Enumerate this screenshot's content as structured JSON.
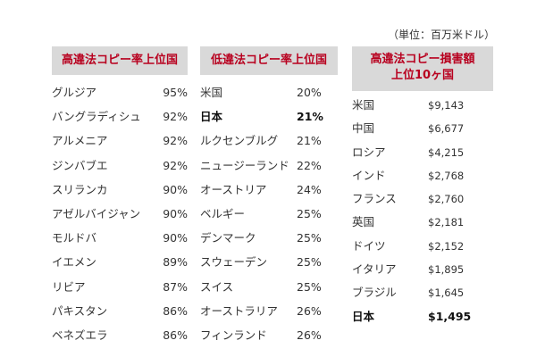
{
  "unit_note": "（単位：百万米ドル）",
  "high_rate": {
    "title": "高違法コピー率上位国",
    "rows": [
      {
        "name": "グルジア",
        "value": "95%"
      },
      {
        "name": "バングラディシュ",
        "value": "92%"
      },
      {
        "name": "アルメニア",
        "value": "92%"
      },
      {
        "name": "ジンバブエ",
        "value": "92%"
      },
      {
        "name": "スリランカ",
        "value": "90%"
      },
      {
        "name": "アゼルバイジャン",
        "value": "90%"
      },
      {
        "name": "モルドバ",
        "value": "90%"
      },
      {
        "name": "イエメン",
        "value": "89%"
      },
      {
        "name": "リビア",
        "value": "87%"
      },
      {
        "name": "パキスタン",
        "value": "86%"
      },
      {
        "name": "ベネズエラ",
        "value": "86%"
      }
    ]
  },
  "low_rate": {
    "title": "低違法コピー率上位国",
    "rows": [
      {
        "name": "米国",
        "value": "20%"
      },
      {
        "name": "日本",
        "value": "21%",
        "bold": true
      },
      {
        "name": "ルクセンブルグ",
        "value": "21%"
      },
      {
        "name": "ニュージーランド",
        "value": "22%"
      },
      {
        "name": "オーストリア",
        "value": "24%"
      },
      {
        "name": "ベルギー",
        "value": "25%"
      },
      {
        "name": "デンマーク",
        "value": "25%"
      },
      {
        "name": "スウェーデン",
        "value": "25%"
      },
      {
        "name": "スイス",
        "value": "25%"
      },
      {
        "name": "オーストラリア",
        "value": "26%"
      },
      {
        "name": "フィンランド",
        "value": "26%"
      }
    ]
  },
  "loss": {
    "title_line1": "高違法コピー損害額",
    "title_line2": "上位10ヶ国",
    "rows": [
      {
        "name": "米国",
        "value": "$9,143"
      },
      {
        "name": "中国",
        "value": "$6,677"
      },
      {
        "name": "ロシア",
        "value": "$4,215"
      },
      {
        "name": "インド",
        "value": "$2,768"
      },
      {
        "name": "フランス",
        "value": "$2,760"
      },
      {
        "name": "英国",
        "value": "$2,181"
      },
      {
        "name": "ドイツ",
        "value": "$2,152"
      },
      {
        "name": "イタリア",
        "value": "$1,895"
      },
      {
        "name": "ブラジル",
        "value": "$1,645"
      },
      {
        "name": "日本",
        "value": "$1,495",
        "bold": true
      }
    ]
  }
}
